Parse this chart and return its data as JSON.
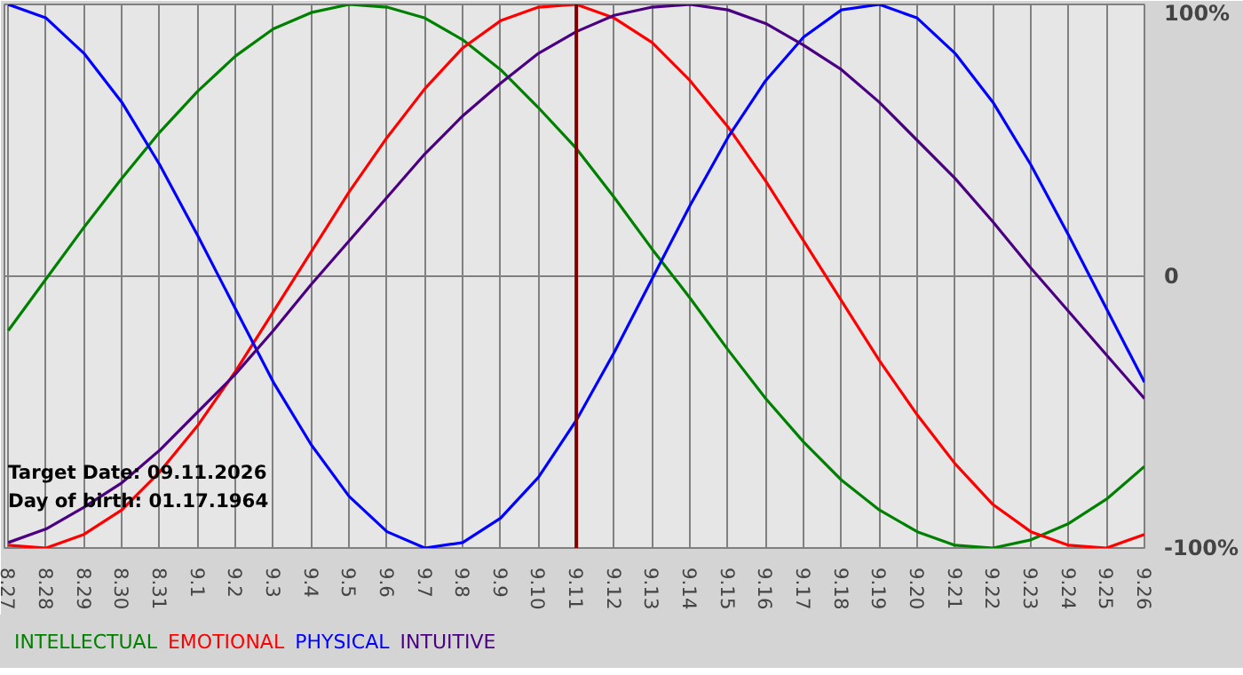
{
  "chart_data": {
    "type": "line",
    "categories": [
      "8.27",
      "8.28",
      "8.29",
      "8.30",
      "8.31",
      "9.1",
      "9.2",
      "9.3",
      "9.4",
      "9.5",
      "9.6",
      "9.7",
      "9.8",
      "9.9",
      "9.10",
      "9.11",
      "9.12",
      "9.13",
      "9.14",
      "9.15",
      "9.16",
      "9.17",
      "9.18",
      "9.19",
      "9.20",
      "9.21",
      "9.22",
      "9.23",
      "9.24",
      "9.25",
      "9.26"
    ],
    "series": [
      {
        "name": "INTELLECTUAL",
        "color": "#008000",
        "values": [
          -20,
          -1,
          18,
          36,
          53,
          68,
          81,
          91,
          97,
          100,
          99,
          95,
          87,
          76,
          62,
          47,
          29,
          10,
          -8,
          -27,
          -45,
          -61,
          -75,
          -86,
          -94,
          -99,
          -100,
          -97,
          -91,
          -82,
          -70
        ]
      },
      {
        "name": "EMOTIONAL",
        "color": "#ff0000",
        "values": [
          -99,
          -100,
          -95,
          -86,
          -72,
          -55,
          -35,
          -13,
          9,
          31,
          51,
          69,
          84,
          94,
          99,
          100,
          95,
          86,
          72,
          55,
          35,
          13,
          -9,
          -31,
          -51,
          -69,
          -84,
          -94,
          -99,
          -100,
          -95
        ]
      },
      {
        "name": "PHYSICAL",
        "color": "#0000ff",
        "values": [
          100,
          95,
          82,
          64,
          41,
          15,
          -12,
          -39,
          -62,
          -81,
          -94,
          -100,
          -98,
          -89,
          -74,
          -53,
          -28,
          -1,
          26,
          51,
          72,
          88,
          98,
          100,
          95,
          82,
          64,
          41,
          15,
          -12,
          -39
        ]
      },
      {
        "name": "INTUITIVE",
        "color": "#4b0082",
        "values": [
          -98,
          -93,
          -85,
          -76,
          -64,
          -50,
          -36,
          -20,
          -3,
          13,
          29,
          45,
          59,
          71,
          82,
          90,
          96,
          99,
          100,
          98,
          93,
          85,
          76,
          64,
          50,
          36,
          20,
          3,
          -13,
          -29,
          -45
        ]
      }
    ],
    "ylim": [
      -100,
      100
    ],
    "yticks": [
      {
        "value": 100,
        "label": "100%"
      },
      0,
      {
        "value": -100,
        "label": "-100%"
      }
    ],
    "grid": true,
    "ref_lines": [
      {
        "axis": "x",
        "value": "9.11",
        "color": "#800000"
      }
    ],
    "annotations": [
      "Target Date: 09.11.2026",
      "Day of birth: 01.17.1964"
    ]
  }
}
